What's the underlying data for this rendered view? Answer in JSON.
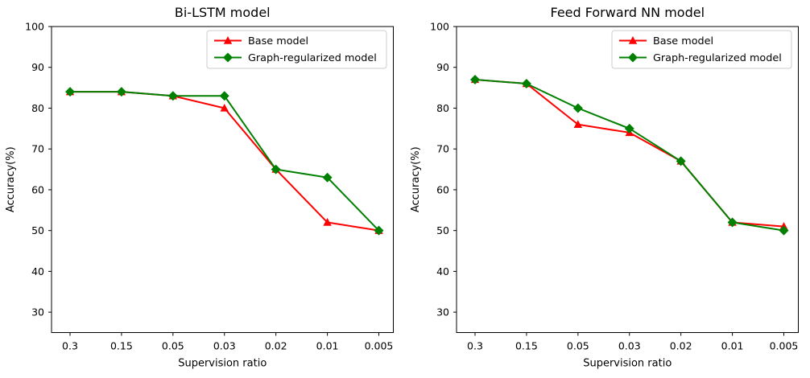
{
  "figure": {
    "background": "#ffffff",
    "text_color": "#000000",
    "axis_color": "#000000",
    "legend_border_color": "#cccccc",
    "legend_background": "#ffffff"
  },
  "chart_data": [
    {
      "type": "line",
      "title": "Bi-LSTM model",
      "xlabel": "Supervision ratio",
      "ylabel": "Accuracy(%)",
      "categories": [
        "0.3",
        "0.15",
        "0.05",
        "0.03",
        "0.02",
        "0.01",
        "0.005"
      ],
      "ylim": [
        25,
        100
      ],
      "yticks": [
        30,
        40,
        50,
        60,
        70,
        80,
        90,
        100
      ],
      "grid": false,
      "legend_position": "upper right",
      "series": [
        {
          "name": "Base model",
          "color": "#ff0000",
          "marker": "triangle",
          "values": [
            84,
            84,
            83,
            80,
            65,
            52,
            50
          ]
        },
        {
          "name": "Graph-regularized model",
          "color": "#008000",
          "marker": "diamond",
          "values": [
            84,
            84,
            83,
            83,
            65,
            63,
            50
          ]
        }
      ]
    },
    {
      "type": "line",
      "title": "Feed Forward NN model",
      "xlabel": "Supervision ratio",
      "ylabel": "Accuracy(%)",
      "categories": [
        "0.3",
        "0.15",
        "0.05",
        "0.03",
        "0.02",
        "0.01",
        "0.005"
      ],
      "ylim": [
        25,
        100
      ],
      "yticks": [
        30,
        40,
        50,
        60,
        70,
        80,
        90,
        100
      ],
      "grid": false,
      "legend_position": "upper right",
      "series": [
        {
          "name": "Base model",
          "color": "#ff0000",
          "marker": "triangle",
          "values": [
            87,
            86,
            76,
            74,
            67,
            52,
            51
          ]
        },
        {
          "name": "Graph-regularized model",
          "color": "#008000",
          "marker": "diamond",
          "values": [
            87,
            86,
            80,
            75,
            67,
            52,
            50
          ]
        }
      ]
    }
  ]
}
